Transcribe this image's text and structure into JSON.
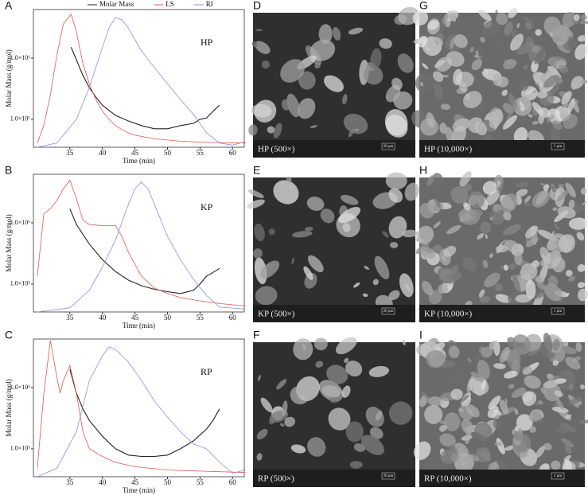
{
  "chart_data": [
    {
      "type": "line",
      "label": "A",
      "annotation": "HP",
      "x_label": "Time (min)",
      "y_label": "Molar Mass (g/mol)",
      "log_y": true,
      "legend": "top",
      "xlim": [
        29.4,
        61.8
      ],
      "xticks": [
        35,
        40,
        45,
        50,
        55,
        60
      ],
      "ylim": [
        35000,
        6200000
      ],
      "yticks": [
        {
          "value": 100000,
          "label": "1.0×10⁵"
        },
        {
          "value": 1000000,
          "label": "1.0×10⁶"
        }
      ],
      "series": [
        {
          "name": "Molar Mass",
          "color": "#222222",
          "x": [
            35.2,
            36,
            37,
            38,
            39,
            40,
            42,
            44,
            46,
            48,
            50,
            52,
            54,
            55,
            56,
            57,
            58
          ],
          "values": [
            1500000,
            940000,
            520000,
            330000,
            230000,
            170000,
            116000,
            94000,
            79000,
            70000,
            70000,
            79000,
            86000,
            100000,
            105000,
            135000,
            170000
          ]
        },
        {
          "name": "LS",
          "color": "#e8554e",
          "x": [
            30,
            31,
            32,
            33,
            34,
            35.2,
            36,
            37,
            38,
            39,
            40,
            41,
            42,
            43,
            44,
            45,
            48,
            52,
            56,
            62
          ],
          "values": [
            41000,
            80000,
            250000,
            1100000,
            3600000,
            5200000,
            2700000,
            810000,
            380000,
            210000,
            135000,
            100000,
            79000,
            68000,
            60000,
            55000,
            48000,
            44000,
            42000,
            41000
          ]
        },
        {
          "name": "RI",
          "color": "#8b8fe0",
          "x": [
            30,
            33,
            36,
            38,
            40,
            41,
            42,
            43,
            44,
            45,
            46,
            48,
            50,
            52,
            54,
            56,
            58,
            60,
            62
          ],
          "values": [
            35000,
            41000,
            100000,
            330000,
            1500000,
            3100000,
            4600000,
            4200000,
            3100000,
            2000000,
            1300000,
            700000,
            380000,
            210000,
            120000,
            60000,
            41000,
            38000,
            43000
          ]
        }
      ]
    },
    {
      "type": "line",
      "label": "B",
      "annotation": "KP",
      "x_label": "Time (min)",
      "y_label": "Molar Mass (g/mol)",
      "log_y": true,
      "xlim": [
        29.4,
        61.8
      ],
      "xticks": [
        35,
        40,
        45,
        50,
        55,
        60
      ],
      "ylim": [
        35000,
        6200000
      ],
      "yticks": [
        {
          "value": 100000,
          "label": "1.0×10⁵"
        },
        {
          "value": 1000000,
          "label": "1.0×10⁶"
        }
      ],
      "series": [
        {
          "color": "#222222",
          "x": [
            35,
            36,
            38,
            40,
            42,
            44,
            46,
            48,
            50,
            52,
            54,
            55,
            56,
            57,
            58
          ],
          "values": [
            1700000,
            940000,
            450000,
            250000,
            160000,
            116000,
            94000,
            82000,
            75000,
            70000,
            79000,
            100000,
            135000,
            155000,
            180000
          ]
        },
        {
          "color": "#e8554e",
          "x": [
            30,
            31,
            32,
            33,
            34,
            35,
            36,
            37,
            38,
            40,
            42,
            43,
            44,
            45,
            46,
            48,
            50,
            52,
            55,
            58,
            62
          ],
          "values": [
            135000,
            1400000,
            1700000,
            2300000,
            3600000,
            5000000,
            2500000,
            1100000,
            940000,
            900000,
            900000,
            600000,
            330000,
            210000,
            135000,
            86000,
            70000,
            60000,
            53000,
            48000,
            44000
          ]
        },
        {
          "color": "#8b8fe0",
          "x": [
            30,
            35,
            38,
            40,
            42,
            44,
            45,
            46,
            47,
            48,
            50,
            52,
            54,
            56,
            58,
            62
          ],
          "values": [
            35000,
            41000,
            79000,
            190000,
            520000,
            2000000,
            3600000,
            4600000,
            3600000,
            2000000,
            600000,
            250000,
            120000,
            65000,
            42000,
            39000
          ]
        }
      ]
    },
    {
      "type": "line",
      "label": "C",
      "annotation": "RP",
      "x_label": "Time (min)",
      "y_label": "Molar Mass (g/mol)",
      "log_y": true,
      "xlim": [
        29.4,
        61.8
      ],
      "xticks": [
        35,
        40,
        45,
        50,
        55,
        60
      ],
      "ylim": [
        35000,
        6200000
      ],
      "yticks": [
        {
          "value": 100000,
          "label": "1.0×10⁵"
        },
        {
          "value": 1000000,
          "label": "1.0×10⁶"
        }
      ],
      "series": [
        {
          "color": "#222222",
          "x": [
            35,
            36,
            37,
            38,
            40,
            42,
            44,
            46,
            48,
            50,
            52,
            54,
            56,
            57,
            58
          ],
          "values": [
            2000000,
            810000,
            450000,
            290000,
            160000,
            100000,
            79000,
            75000,
            75000,
            79000,
            100000,
            135000,
            210000,
            290000,
            450000
          ]
        },
        {
          "color": "#e8554e",
          "x": [
            30,
            31,
            32,
            33,
            33.5,
            34,
            35,
            36,
            37,
            38,
            40,
            42,
            45,
            50,
            62
          ],
          "values": [
            48000,
            800000,
            5900000,
            1500000,
            810000,
            1300000,
            2300000,
            810000,
            190000,
            100000,
            75000,
            60000,
            51000,
            45000,
            41000
          ]
        },
        {
          "color": "#8b8fe0",
          "x": [
            30,
            33,
            36,
            38,
            40,
            41,
            42,
            44,
            46,
            48,
            50,
            52,
            54,
            56,
            58,
            60,
            62
          ],
          "values": [
            35000,
            48000,
            190000,
            1300000,
            3300000,
            4600000,
            4200000,
            2600000,
            1300000,
            600000,
            330000,
            190000,
            120000,
            100000,
            60000,
            40000,
            45000
          ]
        }
      ]
    }
  ],
  "images": [
    {
      "letter": "D",
      "caption": "HP (500×)",
      "scale_bar": "20 μm"
    },
    {
      "letter": "G",
      "caption": "HP (10,000×)",
      "scale_bar": "1 μm"
    },
    {
      "letter": "E",
      "caption": "KP (500×)",
      "scale_bar": "20 μm"
    },
    {
      "letter": "H",
      "caption": "KP (10,000×)",
      "scale_bar": "1 μm"
    },
    {
      "letter": "F",
      "caption": "RP (500×)",
      "scale_bar": "20 μm"
    },
    {
      "letter": "I",
      "caption": "RP (10,000×)",
      "scale_bar": "1 μm"
    }
  ]
}
